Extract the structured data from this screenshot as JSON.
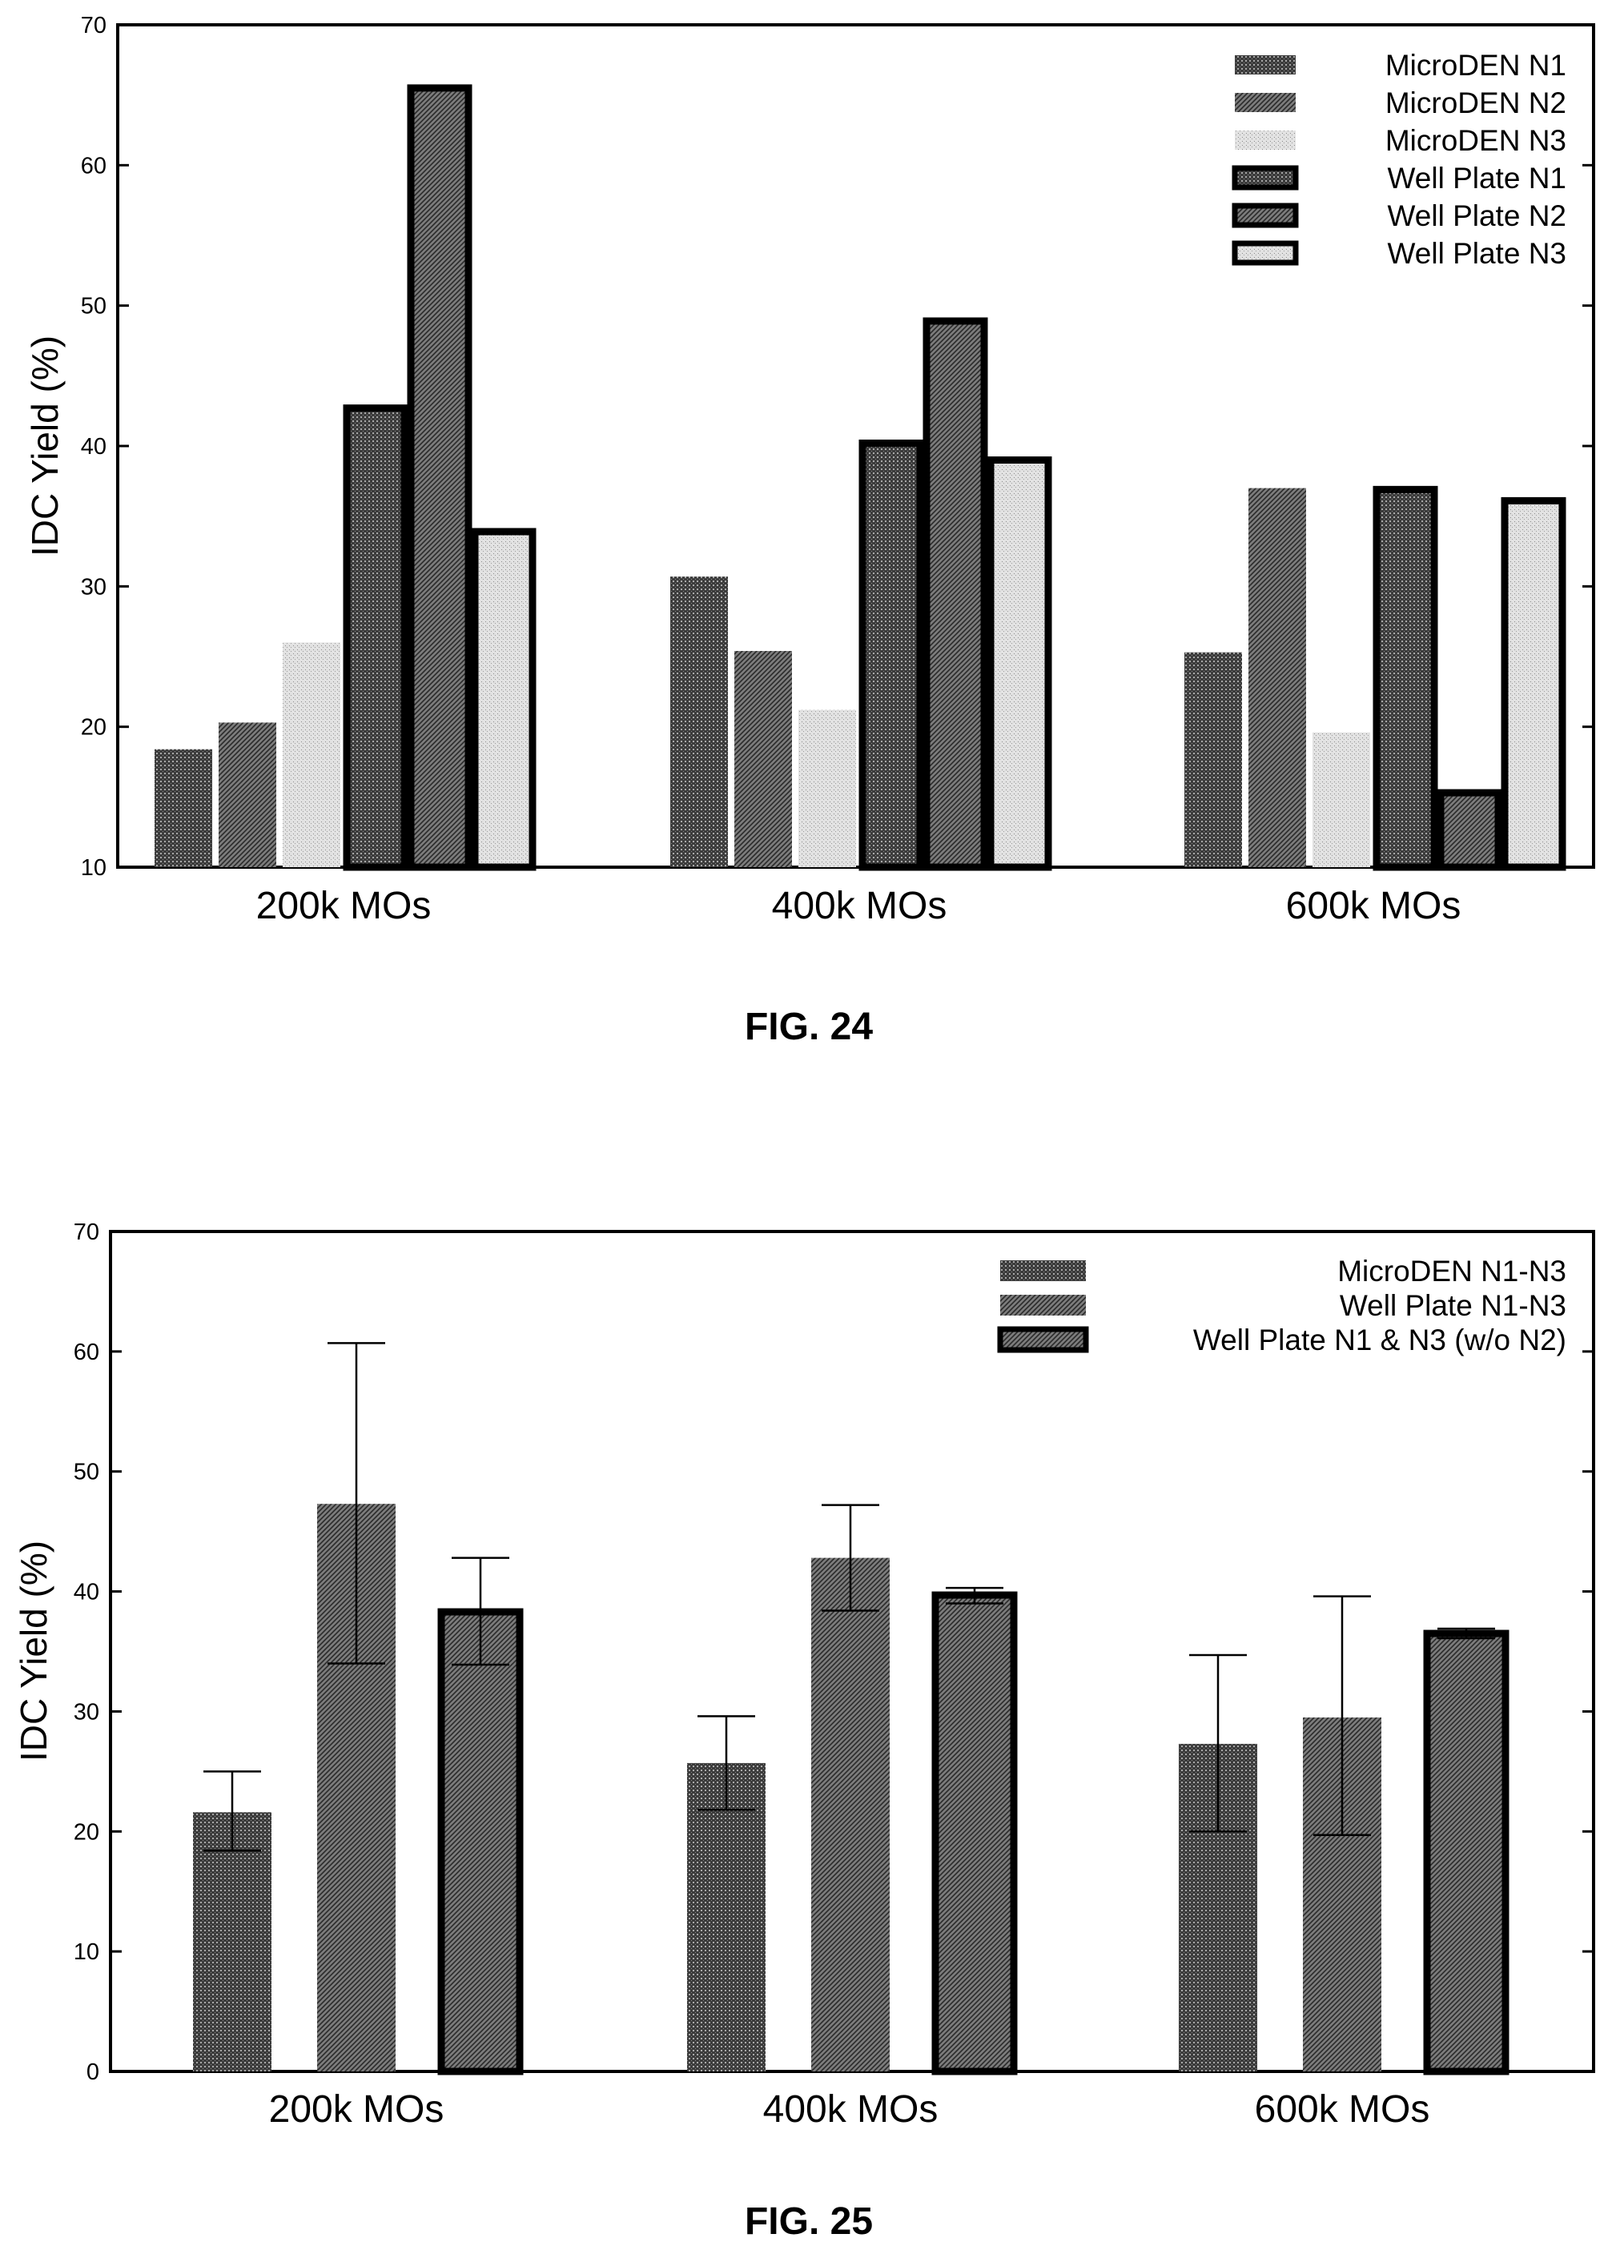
{
  "chart_data": [
    {
      "type": "bar",
      "title": "FIG. 24",
      "xlabel": "",
      "ylabel": "IDC Yield (%)",
      "ylim": [
        10,
        70
      ],
      "yticks": [
        10,
        20,
        30,
        40,
        50,
        60,
        70
      ],
      "categories": [
        "200k MOs",
        "400k MOs",
        "600k MOs"
      ],
      "legend_position": "top-right",
      "series": [
        {
          "name": "MicroDEN N1",
          "values": [
            18.4,
            30.7,
            25.3
          ],
          "pattern": "dense",
          "thick_border": false
        },
        {
          "name": "MicroDEN N2",
          "values": [
            20.3,
            25.4,
            37.0
          ],
          "pattern": "medium",
          "thick_border": false
        },
        {
          "name": "MicroDEN N3",
          "values": [
            26.0,
            21.2,
            19.6
          ],
          "pattern": "light",
          "thick_border": false
        },
        {
          "name": "Well Plate N1",
          "values": [
            42.7,
            40.2,
            36.9
          ],
          "pattern": "dense",
          "thick_border": true
        },
        {
          "name": "Well Plate N2",
          "values": [
            65.5,
            48.9,
            15.3
          ],
          "pattern": "medium",
          "thick_border": true
        },
        {
          "name": "Well Plate N3",
          "values": [
            33.9,
            39.0,
            36.1
          ],
          "pattern": "light",
          "thick_border": true
        }
      ]
    },
    {
      "type": "bar",
      "title": "FIG. 25",
      "xlabel": "",
      "ylabel": "IDC Yield (%)",
      "ylim": [
        0,
        70
      ],
      "yticks": [
        0,
        10,
        20,
        30,
        40,
        50,
        60,
        70
      ],
      "categories": [
        "200k MOs",
        "400k MOs",
        "600k MOs"
      ],
      "legend_position": "top-right",
      "series": [
        {
          "name": "MicroDEN N1-N3",
          "values": [
            21.6,
            25.7,
            27.3
          ],
          "error_low": [
            18.4,
            21.8,
            20.0
          ],
          "error_high": [
            25.0,
            29.6,
            34.7
          ],
          "pattern": "dense",
          "thick_border": false
        },
        {
          "name": "Well Plate N1-N3",
          "values": [
            47.3,
            42.8,
            29.5
          ],
          "error_low": [
            34.0,
            38.4,
            19.7
          ],
          "error_high": [
            60.7,
            47.2,
            39.6
          ],
          "pattern": "medium",
          "thick_border": false
        },
        {
          "name": "Well Plate N1 & N3 (w/o N2)",
          "values": [
            38.3,
            39.7,
            36.5
          ],
          "error_low": [
            33.9,
            39.0,
            36.1
          ],
          "error_high": [
            42.8,
            40.3,
            36.9
          ],
          "pattern": "medium",
          "thick_border": true
        }
      ]
    }
  ]
}
